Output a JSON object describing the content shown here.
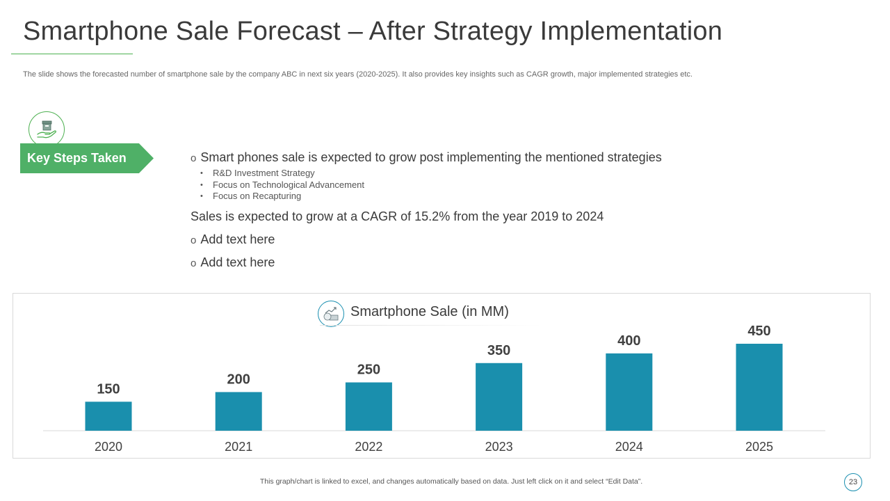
{
  "title": "Smartphone Sale Forecast – After Strategy Implementation",
  "subtitle": "The slide shows the forecasted number of smartphone sale by the company ABC in next six years (2020-2025).  It also provides  key insights such as CAGR growth, major implemented strategies etc.",
  "key_steps": {
    "icon": "box-in-hand-icon",
    "label": "Key Steps Taken"
  },
  "points": {
    "main": "Smart phones sale is expected to grow post implementing the mentioned strategies",
    "bullets": [
      "R&D Investment Strategy",
      "Focus on Technological Advancement",
      "Focus on Recapturing"
    ],
    "cagr": "Sales is expected to grow at a CAGR of 15.2% from the year 2019 to 2024",
    "add1": "Add text here",
    "add2": "Add text here"
  },
  "chart_header": {
    "icon": "growth-chart-icon"
  },
  "chart_data": {
    "type": "bar",
    "title": "Smartphone  Sale (in MM)",
    "categories": [
      "2020",
      "2021",
      "2022",
      "2023",
      "2024",
      "2025"
    ],
    "values": [
      150,
      200,
      250,
      350,
      400,
      450
    ],
    "xlabel": "",
    "ylabel": "",
    "ylim": [
      0,
      450
    ],
    "grid": false,
    "color": "#1a8fad"
  },
  "footer": {
    "note": "This graph/chart is linked to excel,  and changes automatically based on data. Just left click on it and select “Edit Data”.",
    "page_number": "23"
  },
  "colors": {
    "green": "#4fb067",
    "teal": "#1a8fad"
  }
}
